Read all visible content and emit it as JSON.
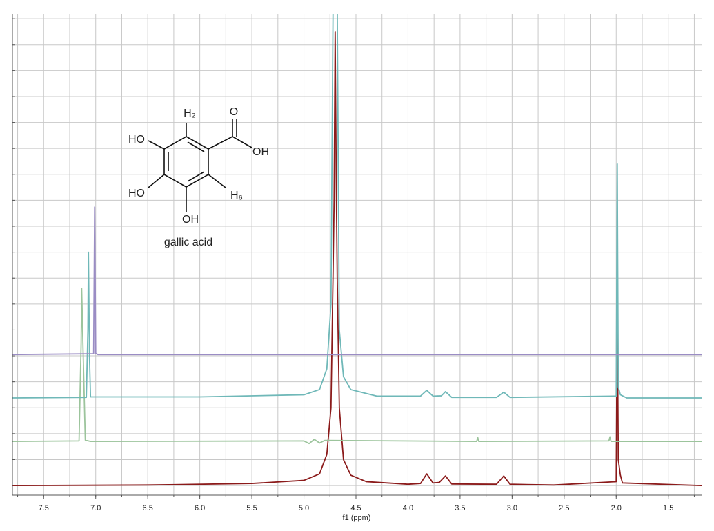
{
  "chart_data": {
    "type": "line",
    "x_label": "f1 (ppm)",
    "xlim": [
      7.8,
      1.18
    ],
    "xticks": [
      7.5,
      {
        "value": 7,
        "label": "7.0"
      },
      6.5,
      {
        "value": 6,
        "label": "6.0"
      },
      5.5,
      {
        "value": 5,
        "label": "5.0"
      },
      4.5,
      {
        "value": 4,
        "label": "4.0"
      },
      3.5,
      {
        "value": 3,
        "label": "3.0"
      },
      2.5,
      {
        "value": 2,
        "label": "2.0"
      },
      1.5
    ],
    "xgrid": [
      7.75,
      7.5,
      7.25,
      7,
      6.75,
      6.5,
      6.25,
      6,
      5.75,
      5.5,
      5.25,
      5,
      4.75,
      4.5,
      4.25,
      4,
      3.75,
      3.5,
      3.25,
      3,
      2.75,
      2.5,
      2.25,
      2,
      1.75,
      1.5,
      1.25
    ],
    "ylim": [
      -0.37,
      18.19
    ],
    "yticks": [
      0,
      1,
      2,
      3,
      4,
      5,
      6,
      7,
      8,
      9,
      10,
      11,
      12,
      13,
      14,
      15,
      16,
      17,
      18
    ],
    "grid": true,
    "series": [
      {
        "color": "#8b1a1a",
        "x": [
          7.8,
          6.5,
          5.5,
          5.0,
          4.85,
          4.78,
          4.74,
          4.72,
          4.71,
          4.7,
          4.69,
          4.68,
          4.66,
          4.62,
          4.55,
          4.4,
          4.0,
          3.88,
          3.82,
          3.76,
          3.7,
          3.64,
          3.58,
          3.15,
          3.08,
          3.02,
          2.6,
          2.0,
          1.99,
          1.98,
          1.96,
          1.94,
          1.18
        ],
        "values": [
          0,
          0.02,
          0.08,
          0.2,
          0.45,
          1.2,
          3,
          8.2,
          11,
          17.5,
          12,
          8,
          3,
          1.0,
          0.4,
          0.15,
          0.05,
          0.08,
          0.45,
          0.1,
          0.12,
          0.37,
          0.06,
          0.05,
          0.37,
          0.05,
          0.02,
          0.15,
          7.15,
          1,
          0.4,
          0.1,
          0
        ]
      },
      {
        "color": "#9cc49c",
        "x": [
          7.8,
          7.16,
          7.14,
          7.135,
          7.12,
          7.1,
          7.05,
          5.0,
          4.95,
          4.9,
          4.85,
          4.8,
          3.34,
          3.33,
          3.32,
          2.07,
          2.06,
          2.05,
          1.18
        ],
        "values": [
          1.7,
          1.72,
          5.5,
          7.6,
          5,
          1.75,
          1.7,
          1.72,
          1.62,
          1.78,
          1.64,
          1.74,
          1.7,
          1.85,
          1.7,
          1.72,
          1.88,
          1.7,
          1.7
        ]
      },
      {
        "color": "#6fb8b8",
        "x": [
          7.8,
          7.09,
          7.075,
          7.07,
          7.06,
          7.05,
          6.0,
          5.0,
          4.85,
          4.78,
          4.74,
          4.72,
          4.68,
          4.66,
          4.62,
          4.55,
          4.3,
          3.88,
          3.82,
          3.76,
          3.68,
          3.64,
          3.58,
          3.15,
          3.08,
          3.02,
          2.0,
          1.99,
          1.98,
          1.96,
          1.9,
          1.18
        ],
        "values": [
          3.38,
          3.4,
          6,
          9.0,
          5,
          3.42,
          3.42,
          3.5,
          3.7,
          4.5,
          7,
          18.5,
          18.5,
          6,
          4.2,
          3.7,
          3.45,
          3.45,
          3.67,
          3.45,
          3.46,
          3.62,
          3.4,
          3.4,
          3.6,
          3.4,
          3.45,
          12.4,
          3.8,
          3.5,
          3.38,
          3.38
        ]
      },
      {
        "color": "#9a8cc4",
        "x": [
          7.8,
          7.02,
          7.01,
          7.0,
          6.98,
          1.18
        ],
        "values": [
          5.05,
          5.08,
          10.74,
          5.1,
          5.05,
          5.05
        ]
      }
    ],
    "structure": {
      "h2": "H₂",
      "o": "O",
      "oh_acid": "OH",
      "h6": "H₆",
      "ho_top": "HO",
      "ho_mid": "HO",
      "oh_bottom": "OH",
      "name": "gallic acid"
    }
  }
}
